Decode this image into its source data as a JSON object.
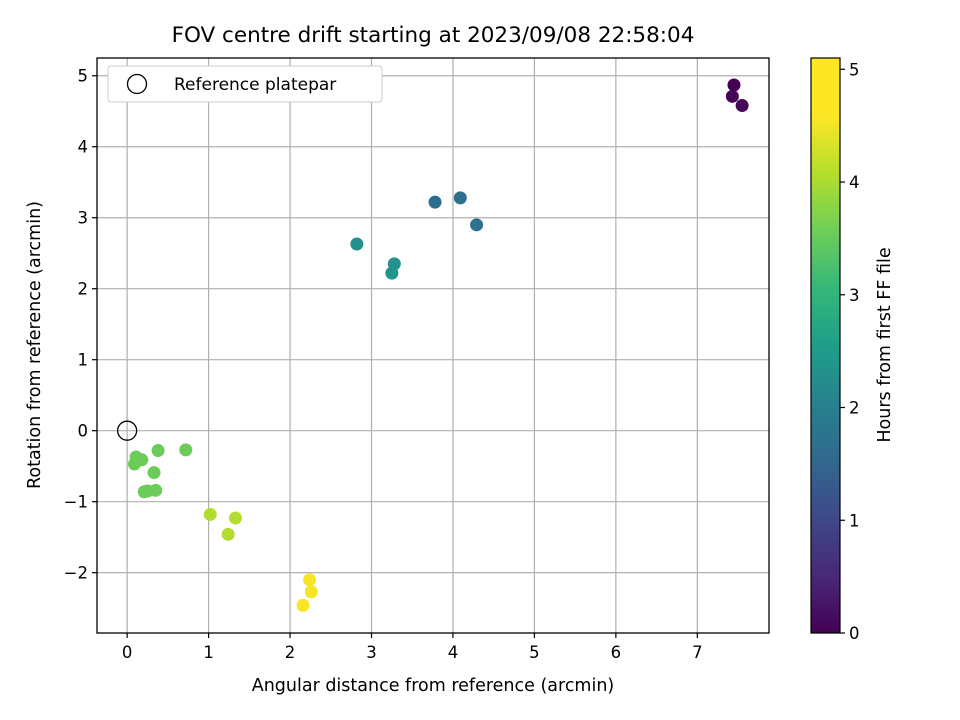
{
  "chart_data": {
    "type": "scatter",
    "title": "FOV centre drift starting at 2023/09/08 22:58:04",
    "xlabel": "Angular distance from reference (arcmin)",
    "ylabel": "Rotation from reference (arcmin)",
    "xlim": [
      -0.37,
      7.88
    ],
    "ylim": [
      -2.85,
      5.25
    ],
    "xticks": [
      0,
      1,
      2,
      3,
      4,
      5,
      6,
      7
    ],
    "yticks": [
      -2,
      -1,
      0,
      1,
      2,
      3,
      4,
      5
    ],
    "xtick_labels": [
      "0",
      "1",
      "2",
      "3",
      "4",
      "5",
      "6",
      "7"
    ],
    "ytick_labels": [
      "−2",
      "−1",
      "0",
      "1",
      "2",
      "3",
      "4",
      "5"
    ],
    "grid": true,
    "legend": {
      "position": "top-left",
      "entries": [
        {
          "label": "Reference platepar",
          "marker": "open-circle"
        }
      ]
    },
    "reference": {
      "x": 0,
      "y": 0
    },
    "colorbar": {
      "label": "Hours from first FF file",
      "min": 0,
      "max": 5.1,
      "ticks": [
        0,
        1,
        2,
        3,
        4,
        5
      ],
      "tick_labels": [
        "0",
        "1",
        "2",
        "3",
        "4",
        "5"
      ],
      "colormap": "viridis"
    },
    "points": [
      {
        "x": 7.45,
        "y": 4.87,
        "hours": 0.0
      },
      {
        "x": 7.43,
        "y": 4.71,
        "hours": 0.05
      },
      {
        "x": 7.55,
        "y": 4.58,
        "hours": 0.1
      },
      {
        "x": 3.78,
        "y": 3.22,
        "hours": 1.8
      },
      {
        "x": 4.09,
        "y": 3.28,
        "hours": 1.85
      },
      {
        "x": 4.29,
        "y": 2.9,
        "hours": 1.9
      },
      {
        "x": 2.82,
        "y": 2.63,
        "hours": 2.55
      },
      {
        "x": 3.28,
        "y": 2.35,
        "hours": 2.6
      },
      {
        "x": 3.25,
        "y": 2.22,
        "hours": 2.65
      },
      {
        "x": 0.72,
        "y": -0.27,
        "hours": 3.95
      },
      {
        "x": 0.38,
        "y": -0.28,
        "hours": 3.95
      },
      {
        "x": 0.11,
        "y": -0.37,
        "hours": 3.95
      },
      {
        "x": 0.18,
        "y": -0.41,
        "hours": 3.95
      },
      {
        "x": 0.09,
        "y": -0.47,
        "hours": 3.95
      },
      {
        "x": 0.33,
        "y": -0.59,
        "hours": 3.95
      },
      {
        "x": 0.35,
        "y": -0.84,
        "hours": 3.95
      },
      {
        "x": 0.21,
        "y": -0.86,
        "hours": 3.95
      },
      {
        "x": 0.25,
        "y": -0.85,
        "hours": 3.95
      },
      {
        "x": 1.02,
        "y": -1.18,
        "hours": 4.5
      },
      {
        "x": 1.33,
        "y": -1.23,
        "hours": 4.5
      },
      {
        "x": 1.24,
        "y": -1.46,
        "hours": 4.5
      },
      {
        "x": 2.24,
        "y": -2.1,
        "hours": 5.05
      },
      {
        "x": 2.26,
        "y": -2.27,
        "hours": 5.05
      },
      {
        "x": 2.16,
        "y": -2.46,
        "hours": 5.05
      }
    ]
  }
}
